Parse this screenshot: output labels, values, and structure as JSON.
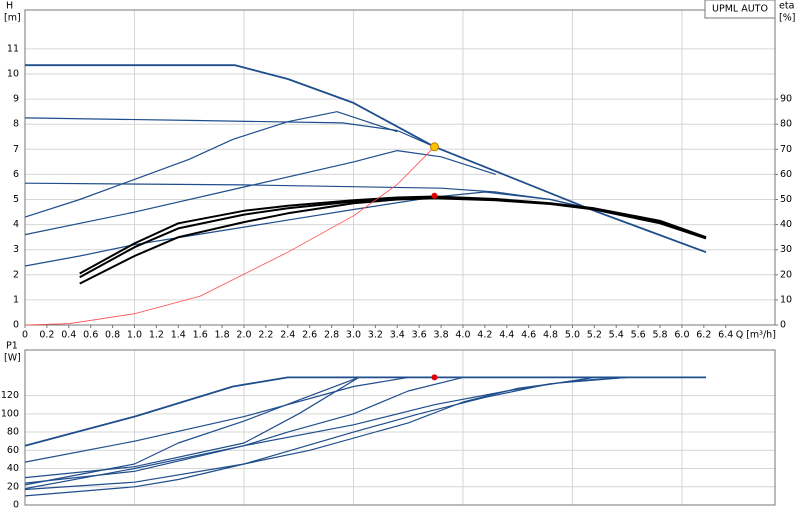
{
  "chart_data": [
    {
      "type": "line",
      "title": "UPML AUTO",
      "ylabel": "H",
      "yunit": "[m]",
      "y2label": "eta",
      "y2unit": "[%]",
      "xlabel": "Q [m³/h]",
      "xlim": [
        0,
        6.85
      ],
      "ylim": [
        0,
        12.55
      ],
      "y2lim": [
        0,
        125.5
      ],
      "grid": true,
      "xticks": [
        0,
        0.2,
        0.4,
        0.6,
        0.8,
        {
          "value": 1,
          "label": "1.0"
        },
        1.2,
        1.4,
        1.6,
        1.8,
        {
          "value": 2,
          "label": "2.0"
        },
        2.2,
        2.4,
        2.6,
        2.8,
        {
          "value": 3,
          "label": "3.0"
        },
        3.2,
        3.4,
        3.6,
        3.8,
        {
          "value": 4,
          "label": "4.0"
        },
        4.2,
        4.4,
        4.6,
        4.8,
        {
          "value": 5,
          "label": "5.0"
        },
        5.2,
        5.4,
        5.6,
        5.8,
        {
          "value": 6,
          "label": "6.0"
        },
        6.2,
        6.4
      ],
      "yticks": [
        0,
        1,
        2,
        3,
        4,
        5,
        6,
        7,
        8,
        9,
        10,
        11
      ],
      "y2ticks": [
        0,
        10,
        20,
        30,
        40,
        50,
        60,
        70,
        80,
        90
      ],
      "series": [
        {
          "color": "#1f4e8c",
          "width": 1.8,
          "x": [
            0,
            1.92,
            2.4,
            3.0,
            3.74,
            4.4,
            5.2,
            6.22
          ],
          "values": [
            10.35,
            10.35,
            9.8,
            8.85,
            7.1,
            5.95,
            4.55,
            2.9
          ]
        },
        {
          "color": "#1f4e8c",
          "width": 1.2,
          "x": [
            0,
            1.5,
            2.9,
            3.4,
            3.74
          ],
          "values": [
            8.25,
            8.15,
            8.05,
            7.75,
            7.1
          ]
        },
        {
          "color": "#1f4e8c",
          "width": 1.2,
          "x": [
            0,
            2,
            3.8,
            4.3,
            4.8,
            5.2
          ],
          "values": [
            5.65,
            5.58,
            5.45,
            5.3,
            5.0,
            4.6
          ]
        },
        {
          "color": "#1f4e8c",
          "width": 1.2,
          "axis": "y2",
          "x": [
            0,
            0.5,
            1,
            1.5,
            1.9,
            2.4,
            2.85,
            3.4
          ],
          "values": [
            43,
            50,
            58,
            66,
            74,
            81,
            85,
            77
          ]
        },
        {
          "color": "#1f4e8c",
          "width": 1.2,
          "axis": "y2",
          "x": [
            0,
            1,
            2,
            3,
            3.4,
            3.8,
            4.3
          ],
          "values": [
            36,
            45,
            55,
            65,
            69.5,
            67,
            60
          ]
        },
        {
          "color": "#1f4e8c",
          "width": 1.2,
          "axis": "y2",
          "x": [
            0,
            0.5,
            1,
            1.5,
            2,
            2.5,
            3,
            3.74,
            4.2,
            4.8,
            5.2
          ],
          "values": [
            23.5,
            27.5,
            32,
            35.5,
            39,
            42.5,
            46,
            51,
            53,
            50,
            46
          ]
        },
        {
          "color": "#000000",
          "width": 2,
          "x": [
            0.5,
            1,
            1.4,
            2,
            2.4,
            3,
            3.4,
            3.74,
            4.3,
            4.8,
            5.2,
            5.8,
            6.22
          ],
          "values": [
            2.05,
            3.25,
            4.05,
            4.55,
            4.75,
            4.97,
            5.08,
            5.12,
            5.02,
            4.85,
            4.65,
            4.15,
            3.5
          ]
        },
        {
          "color": "#000000",
          "width": 2,
          "x": [
            0.5,
            1,
            1.4,
            2,
            2.4,
            3,
            3.4,
            3.74,
            4.3,
            4.8,
            5.2,
            5.8,
            6.22
          ],
          "values": [
            1.9,
            3.1,
            3.85,
            4.4,
            4.65,
            4.92,
            5.05,
            5.1,
            5.0,
            4.83,
            4.62,
            4.1,
            3.48
          ]
        },
        {
          "color": "#000000",
          "width": 2,
          "x": [
            0.5,
            1,
            1.4,
            2,
            2.4,
            3,
            3.4,
            3.74,
            4.3,
            4.8,
            5.2,
            5.8,
            6.22
          ],
          "values": [
            1.65,
            2.75,
            3.5,
            4.1,
            4.45,
            4.85,
            5.0,
            5.05,
            4.97,
            4.82,
            4.6,
            4.05,
            3.45
          ]
        },
        {
          "color": "#ff4a4a",
          "width": 0.8,
          "x": [
            0,
            0.4,
            1,
            1.6,
            2.4,
            3,
            3.4,
            3.74
          ],
          "values": [
            0,
            0.05,
            0.45,
            1.15,
            2.9,
            4.35,
            5.6,
            7.1
          ]
        }
      ],
      "markers": [
        {
          "x": 3.74,
          "y": 7.1,
          "color": "#ffc000"
        },
        {
          "x": 3.74,
          "y": 5.15,
          "color": "#e00000"
        }
      ]
    },
    {
      "type": "line",
      "ylabel": "P1",
      "yunit": "[W]",
      "xlim": [
        0,
        6.85
      ],
      "ylim": [
        0,
        170
      ],
      "grid": true,
      "xticks": [
        0,
        1,
        2,
        3,
        4,
        5,
        6
      ],
      "yticks": [
        0,
        20,
        40,
        60,
        80,
        100,
        120
      ],
      "series": [
        {
          "color": "#1f4e8c",
          "width": 1.8,
          "x": [
            0,
            1,
            1.9,
            2.4,
            6.22
          ],
          "values": [
            65,
            97,
            130,
            140,
            140
          ]
        },
        {
          "color": "#1f4e8c",
          "width": 1.2,
          "x": [
            0,
            1,
            2,
            3,
            3.5
          ],
          "values": [
            47,
            70,
            97,
            130,
            140
          ]
        },
        {
          "color": "#1f4e8c",
          "width": 1.2,
          "x": [
            0,
            1,
            2,
            2.5,
            3.05
          ],
          "values": [
            30,
            42,
            68,
            100,
            140
          ]
        },
        {
          "color": "#1f4e8c",
          "width": 1.2,
          "x": [
            0,
            1,
            1.4,
            2,
            2.5,
            3.05
          ],
          "values": [
            22,
            45,
            68,
            92,
            115,
            140
          ]
        },
        {
          "color": "#1f4e8c",
          "width": 1.2,
          "x": [
            0,
            1,
            2,
            2.4,
            3,
            3.5,
            4.0
          ],
          "values": [
            24,
            37,
            65,
            80,
            100,
            125,
            140
          ]
        },
        {
          "color": "#1f4e8c",
          "width": 1.2,
          "x": [
            0,
            1,
            2,
            3,
            3.74,
            4.4,
            5.2
          ],
          "values": [
            18,
            40,
            65,
            88,
            110,
            125,
            140
          ]
        },
        {
          "color": "#1f4e8c",
          "width": 1.2,
          "x": [
            0,
            1,
            2,
            2.6,
            3.5,
            4,
            4.5,
            5,
            5.5
          ],
          "values": [
            17,
            25,
            45,
            60,
            90,
            113,
            128,
            136,
            140
          ]
        },
        {
          "color": "#1f4e8c",
          "width": 1.2,
          "x": [
            0,
            1,
            1.4,
            2,
            3,
            3.6,
            4.2,
            4.8,
            5.5
          ],
          "values": [
            10,
            20,
            28,
            45,
            80,
            100,
            118,
            133,
            140
          ]
        }
      ],
      "markers": [
        {
          "x": 3.74,
          "y": 140,
          "color": "#e00000"
        }
      ]
    }
  ]
}
